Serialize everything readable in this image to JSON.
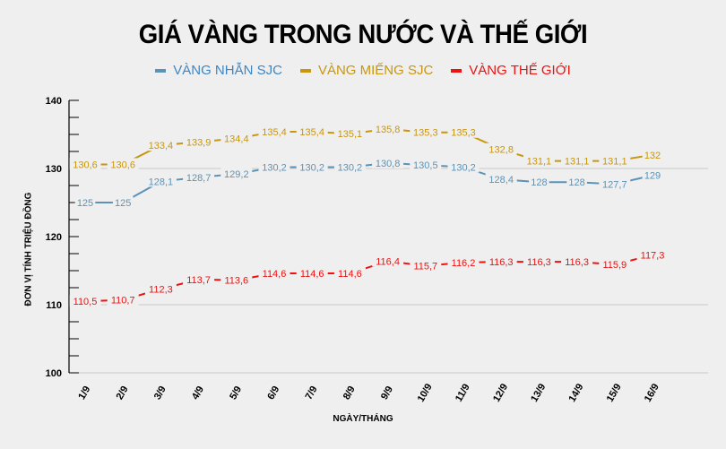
{
  "title": "GIÁ VÀNG TRONG NƯỚC VÀ THẾ GIỚI",
  "legend": [
    {
      "label": "VÀNG NHẪN SJC",
      "color": "#5b93b8"
    },
    {
      "label": "VÀNG MIẾNG SJC",
      "color": "#c8960f"
    },
    {
      "label": "VÀNG THẾ GIỚI",
      "color": "#ef1010"
    }
  ],
  "axes": {
    "ylabel": "ĐƠN VỊ TÍNH TRIỆU ĐỒNG",
    "xlabel": "NGÀY/THÁNG"
  },
  "chart_data": {
    "type": "line",
    "title": "GIÁ VÀNG TRONG NƯỚC VÀ THẾ GIỚI",
    "xlabel": "NGÀY/THÁNG",
    "ylabel": "ĐƠN VỊ TÍNH TRIỆU ĐỒNG",
    "ylim": [
      100,
      140
    ],
    "yticks": [
      100,
      110,
      120,
      130,
      140
    ],
    "grid": "horizontal at 110 and 130",
    "legend_position": "top",
    "categories": [
      "1/9",
      "2/9",
      "3/9",
      "4/9",
      "5/9",
      "6/9",
      "7/9",
      "8/9",
      "9/9",
      "10/9",
      "11/9",
      "12/9",
      "13/9",
      "14/9",
      "15/9",
      "16/9"
    ],
    "series": [
      {
        "name": "VÀNG NHẪN SJC",
        "color": "#5b93b8",
        "values": [
          125,
          125,
          128.1,
          128.7,
          129.2,
          130.2,
          130.2,
          130.2,
          130.8,
          130.5,
          130.2,
          128.4,
          128,
          128,
          127.7,
          129
        ],
        "labels": [
          "125",
          "125",
          "128,1",
          "128,7",
          "129,2",
          "130,2",
          "130,2",
          "130,2",
          "130,8",
          "130,5",
          "130,2",
          "128,4",
          "128",
          "128",
          "127,7",
          "129"
        ]
      },
      {
        "name": "VÀNG MIẾNG SJC",
        "color": "#c8960f",
        "values": [
          130.6,
          130.6,
          133.4,
          133.9,
          134.4,
          135.4,
          135.4,
          135.1,
          135.8,
          135.3,
          135.3,
          132.8,
          131.1,
          131.1,
          131.1,
          132
        ],
        "labels": [
          "130,6",
          "130,6",
          "133,4",
          "133,9",
          "134,4",
          "135,4",
          "135,4",
          "135,1",
          "135,8",
          "135,3",
          "135,3",
          "132,8",
          "131,1",
          "131,1",
          "131,1",
          "132"
        ]
      },
      {
        "name": "VÀNG THẾ GIỚI",
        "color": "#ef1010",
        "values": [
          110.5,
          110.7,
          112.3,
          113.7,
          113.6,
          114.6,
          114.6,
          114.6,
          116.4,
          115.7,
          116.2,
          116.3,
          116.3,
          116.3,
          115.9,
          117.3
        ],
        "labels": [
          "110,5",
          "110,7",
          "112,3",
          "113,7",
          "113,6",
          "114,6",
          "114,6",
          "114,6",
          "116,4",
          "115,7",
          "116,2",
          "116,3",
          "116,3",
          "116,3",
          "115,9",
          "117,3"
        ]
      }
    ]
  }
}
